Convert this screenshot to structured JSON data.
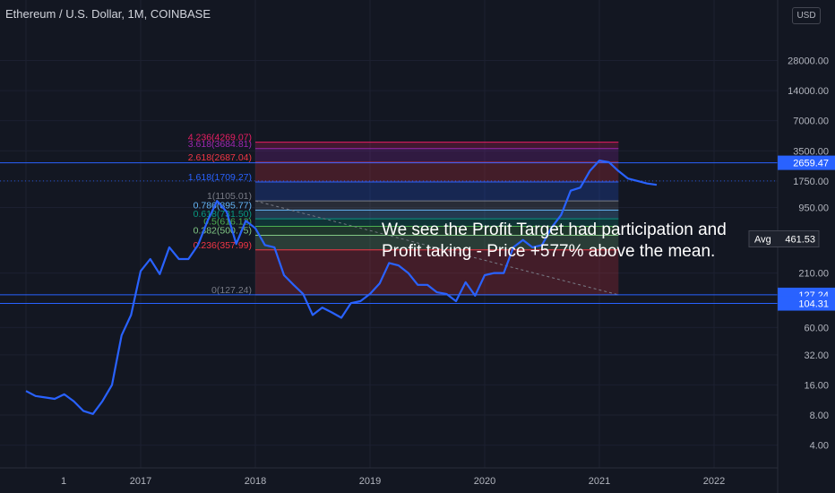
{
  "title": "Ethereum / U.S. Dollar, 1M, COINBASE",
  "currency_label": "USD",
  "annotation": "We see the Profit Target had participation and Profit taking - Price +577% above the mean.",
  "colors": {
    "background": "#131722",
    "price_line": "#2962ff",
    "horizontal_line": "#2962ff",
    "price_label_bg": "#2962ff",
    "avg_label_bg": "#1e222d"
  },
  "chart_data": {
    "type": "line",
    "scale": "log",
    "ylim": [
      3,
      28000
    ],
    "x_ticks": [
      {
        "label": "1",
        "date": "2016-01"
      },
      {
        "label": "2017",
        "date": "2017-01"
      },
      {
        "label": "2018",
        "date": "2018-01"
      },
      {
        "label": "2019",
        "date": "2019-01"
      },
      {
        "label": "2020",
        "date": "2020-01"
      },
      {
        "label": "2021",
        "date": "2021-01"
      },
      {
        "label": "2022",
        "date": "2022-01"
      }
    ],
    "y_ticks": [
      "28000.00",
      "14000.00",
      "7000.00",
      "3500.00",
      "1750.00",
      "950.00",
      "210.00",
      "60.00",
      "32.00",
      "16.00",
      "8.00",
      "4.00"
    ],
    "y_tick_values": [
      28000,
      14000,
      7000,
      3500,
      1750,
      950,
      210,
      60,
      32,
      16,
      8,
      4
    ],
    "series": [
      {
        "dates": [
          "2016-01",
          "2016-02",
          "2016-03",
          "2016-04",
          "2016-05",
          "2016-06",
          "2016-07",
          "2016-08",
          "2016-09",
          "2016-10",
          "2016-11",
          "2016-12",
          "2017-01",
          "2017-02",
          "2017-03",
          "2017-04",
          "2017-05",
          "2017-06",
          "2017-07",
          "2017-08",
          "2017-09",
          "2017-10",
          "2017-11",
          "2017-12",
          "2018-01",
          "2018-02",
          "2018-03",
          "2018-04",
          "2018-05",
          "2018-06",
          "2018-07",
          "2018-08",
          "2018-09",
          "2018-10",
          "2018-11",
          "2018-12",
          "2019-01",
          "2019-02",
          "2019-03",
          "2019-04",
          "2019-05",
          "2019-06",
          "2019-07",
          "2019-08",
          "2019-09",
          "2019-10",
          "2019-11",
          "2019-12",
          "2020-01",
          "2020-02",
          "2020-03",
          "2020-04",
          "2020-05",
          "2020-06",
          "2020-07",
          "2020-08",
          "2020-09",
          "2020-10",
          "2020-11",
          "2020-12",
          "2021-01",
          "2021-02",
          "2021-03",
          "2021-04",
          "2021-05",
          "2021-06",
          "2021-07"
        ],
        "values": [
          13.9,
          12.4,
          12.0,
          11.6,
          12.9,
          11.0,
          8.8,
          8.2,
          11.0,
          16.0,
          50.0,
          80.0,
          220.0,
          290.0,
          205.0,
          380.0,
          290.0,
          290.0,
          400.0,
          700.0,
          1105.0,
          860.0,
          410.0,
          700.0,
          590.0,
          400.0,
          380.0,
          200.0,
          160.0,
          130.0,
          80.0,
          95.0,
          85.0,
          75.0,
          105.0,
          110.0,
          130.0,
          165.0,
          265.0,
          250.0,
          210.0,
          160.0,
          160.0,
          135.0,
          130.0,
          110.0,
          170.0,
          125.0,
          200.0,
          210.0,
          210.0,
          380.0,
          450.0,
          380.0,
          400.0,
          600.0,
          800.0,
          1400.0,
          1500.0,
          2200.0,
          2800.0,
          2700.0,
          2200.0,
          1850.0,
          1750.0,
          1650.0,
          1600.0
        ]
      }
    ],
    "fib_levels": [
      {
        "label": "0(127.24)",
        "value": 127.24,
        "color": "#787b86"
      },
      {
        "label": "0.236(357.99)",
        "value": 357.99,
        "color": "#f23645"
      },
      {
        "label": "0.382(500.75)",
        "value": 500.75,
        "color": "#81c784"
      },
      {
        "label": "0.5(616.12)",
        "value": 616.12,
        "color": "#4caf50"
      },
      {
        "label": "0.618(731.50)",
        "value": 731.5,
        "color": "#089981"
      },
      {
        "label": "0.786(895.77)",
        "value": 895.77,
        "color": "#64b5f6"
      },
      {
        "label": "1(1105.01)",
        "value": 1105.01,
        "color": "#787b86"
      },
      {
        "label": "1.618(1709.27)",
        "value": 1709.27,
        "color": "#2962ff"
      },
      {
        "label": "2.618(2687.04)",
        "value": 2687.04,
        "color": "#f23645"
      },
      {
        "label": "3.618(3684.81)",
        "value": 3684.81,
        "color": "#9c27b0"
      },
      {
        "label": "4.236(4269.07)",
        "value": 4269.07,
        "color": "#e91e63"
      }
    ],
    "fib_range": {
      "start": "2018-01",
      "end": "2021-03"
    },
    "horizontal_lines": [
      {
        "label": "2659.47",
        "value": 2659.47,
        "style": "solid"
      },
      {
        "label": "127.24",
        "value": 127.24,
        "style": "solid"
      },
      {
        "label": "104.31",
        "value": 104.31,
        "style": "solid"
      },
      {
        "value": 1750,
        "style": "dotted"
      }
    ],
    "avg": {
      "label": "Avg",
      "value_label": "461.53",
      "value": 461.53
    }
  }
}
